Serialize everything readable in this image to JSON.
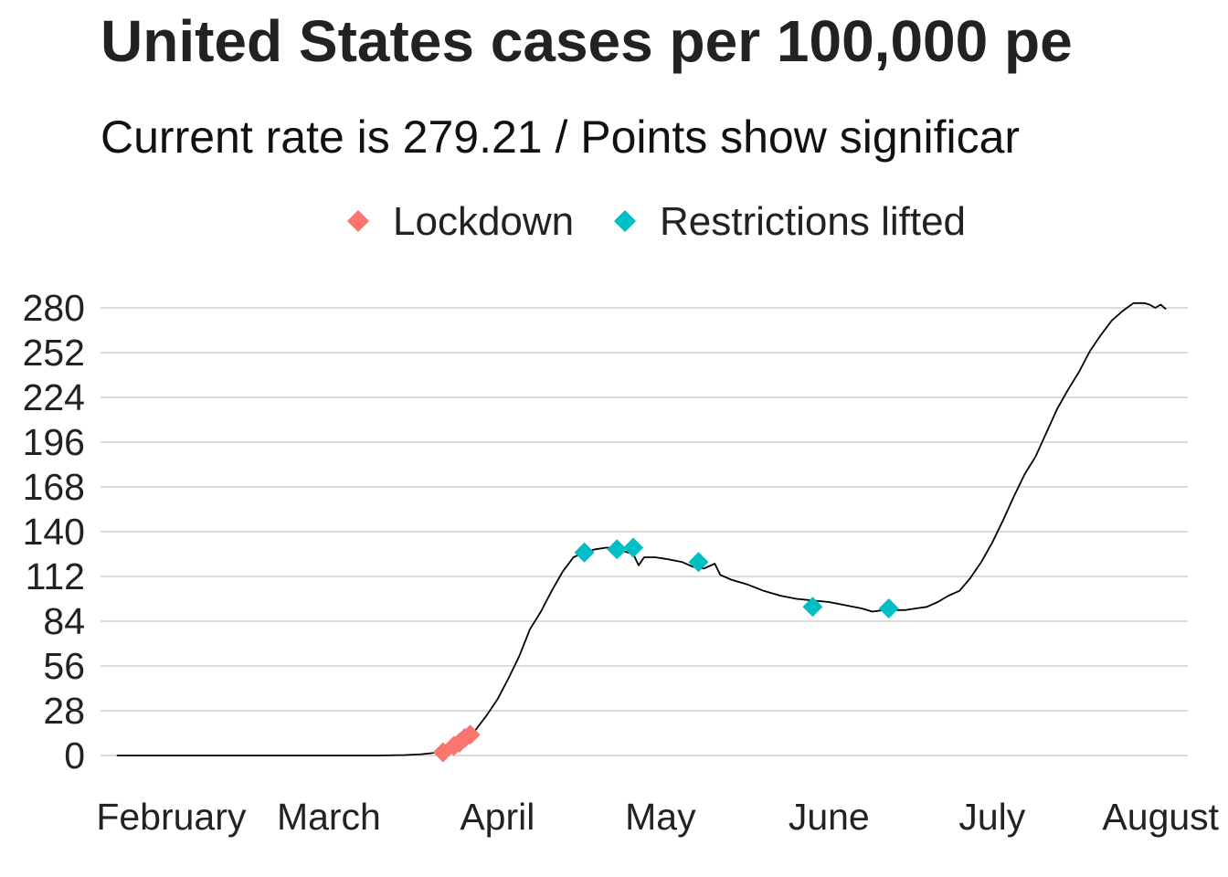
{
  "chart_data": {
    "type": "line",
    "title": "United States cases per 100,000 pe",
    "subtitle": "Current rate is  279.21  /  Points show significar",
    "xlabel": "",
    "ylabel": "",
    "x_axis_type": "date",
    "xlim": [
      "2020-01-19",
      "2020-08-06"
    ],
    "ylim": [
      0,
      280
    ],
    "y_ticks": [
      0,
      28,
      56,
      84,
      112,
      140,
      168,
      196,
      224,
      252,
      280
    ],
    "x_ticks": [
      {
        "date": "2020-02-01",
        "label": "February"
      },
      {
        "date": "2020-03-01",
        "label": "March"
      },
      {
        "date": "2020-04-01",
        "label": "April"
      },
      {
        "date": "2020-05-01",
        "label": "May"
      },
      {
        "date": "2020-06-01",
        "label": "June"
      },
      {
        "date": "2020-07-01",
        "label": "July"
      },
      {
        "date": "2020-08-01",
        "label": "August"
      }
    ],
    "grid": "horizontal",
    "legend_position": "top",
    "line_color": "#000000",
    "series": [
      {
        "line": [
          [
            "2020-01-22",
            0
          ],
          [
            "2020-02-15",
            0
          ],
          [
            "2020-03-01",
            0
          ],
          [
            "2020-03-10",
            0
          ],
          [
            "2020-03-15",
            0.3
          ],
          [
            "2020-03-18",
            0.8
          ],
          [
            "2020-03-20",
            1.5
          ],
          [
            "2020-03-22",
            3
          ],
          [
            "2020-03-24",
            6
          ],
          [
            "2020-03-26",
            10
          ],
          [
            "2020-03-28",
            16
          ],
          [
            "2020-03-30",
            25
          ],
          [
            "2020-04-01",
            35
          ],
          [
            "2020-04-03",
            48
          ],
          [
            "2020-04-05",
            62
          ],
          [
            "2020-04-07",
            79
          ],
          [
            "2020-04-09",
            90
          ],
          [
            "2020-04-11",
            103
          ],
          [
            "2020-04-13",
            115
          ],
          [
            "2020-04-15",
            124
          ],
          [
            "2020-04-17",
            127
          ],
          [
            "2020-04-19",
            129
          ],
          [
            "2020-04-21",
            130
          ],
          [
            "2020-04-23",
            130
          ],
          [
            "2020-04-24",
            128
          ],
          [
            "2020-04-26",
            126
          ],
          [
            "2020-04-27",
            119
          ],
          [
            "2020-04-28",
            124
          ],
          [
            "2020-04-30",
            124
          ],
          [
            "2020-05-02",
            123
          ],
          [
            "2020-05-05",
            121
          ],
          [
            "2020-05-07",
            118
          ],
          [
            "2020-05-09",
            117
          ],
          [
            "2020-05-11",
            120
          ],
          [
            "2020-05-12",
            113
          ],
          [
            "2020-05-14",
            110
          ],
          [
            "2020-05-17",
            107
          ],
          [
            "2020-05-20",
            103
          ],
          [
            "2020-05-23",
            100
          ],
          [
            "2020-05-26",
            98
          ],
          [
            "2020-05-29",
            97
          ],
          [
            "2020-06-01",
            96
          ],
          [
            "2020-06-04",
            94
          ],
          [
            "2020-06-07",
            92
          ],
          [
            "2020-06-09",
            90
          ],
          [
            "2020-06-11",
            91
          ],
          [
            "2020-06-13",
            91
          ],
          [
            "2020-06-15",
            91
          ],
          [
            "2020-06-17",
            92
          ],
          [
            "2020-06-19",
            93
          ],
          [
            "2020-06-21",
            96
          ],
          [
            "2020-06-23",
            100
          ],
          [
            "2020-06-25",
            103
          ],
          [
            "2020-06-27",
            111
          ],
          [
            "2020-06-29",
            121
          ],
          [
            "2020-07-01",
            133
          ],
          [
            "2020-07-03",
            147
          ],
          [
            "2020-07-05",
            162
          ],
          [
            "2020-07-07",
            176
          ],
          [
            "2020-07-09",
            187
          ],
          [
            "2020-07-11",
            202
          ],
          [
            "2020-07-13",
            217
          ],
          [
            "2020-07-15",
            229
          ],
          [
            "2020-07-17",
            240
          ],
          [
            "2020-07-19",
            253
          ],
          [
            "2020-07-21",
            263
          ],
          [
            "2020-07-23",
            272
          ],
          [
            "2020-07-25",
            278
          ],
          [
            "2020-07-27",
            283
          ],
          [
            "2020-07-29",
            283
          ],
          [
            "2020-07-30",
            282
          ],
          [
            "2020-07-31",
            280
          ],
          [
            "2020-08-01",
            282
          ],
          [
            "2020-08-02",
            279.21
          ]
        ]
      }
    ],
    "events": [
      {
        "name": "Lockdown",
        "color": "#F8766D",
        "marker": "diamond",
        "points": [
          [
            "2020-03-22",
            2
          ],
          [
            "2020-03-24",
            6
          ],
          [
            "2020-03-25",
            8
          ],
          [
            "2020-03-26",
            11
          ],
          [
            "2020-03-27",
            13
          ]
        ]
      },
      {
        "name": "Restrictions lifted",
        "color": "#00BFC4",
        "marker": "diamond",
        "points": [
          [
            "2020-04-17",
            127
          ],
          [
            "2020-04-23",
            129
          ],
          [
            "2020-04-26",
            130
          ],
          [
            "2020-05-08",
            121
          ],
          [
            "2020-05-29",
            93
          ],
          [
            "2020-06-12",
            92
          ]
        ]
      }
    ]
  }
}
